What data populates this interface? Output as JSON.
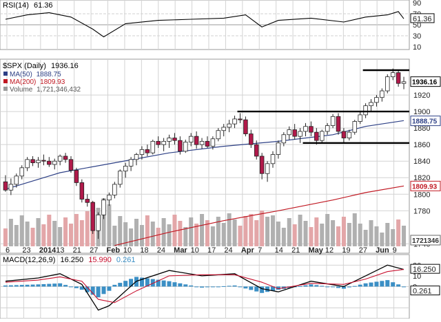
{
  "colors": {
    "grid": "#d2d2d2",
    "up_fill": "#ffffff",
    "down_fill": "#b0194a",
    "candle_edge": "#222222",
    "ma50": "#2c3f85",
    "ma200": "#c01822",
    "vol_up": "#b0b0b0",
    "vol_down": "#e3a6a8",
    "macd_line": "#000000",
    "signal_line": "#c8102e",
    "histogram": "#3b8fc5",
    "rsi_line": "#000000",
    "support_line": "#000000"
  },
  "rsi_panel": {
    "label": "RSI(14)",
    "value_label": "61.36",
    "ticks": [
      "90",
      "70",
      "61.36",
      "50",
      "30",
      "10"
    ]
  },
  "main_panel": {
    "label": "$SPX (Daily)",
    "value_label": "1936.16",
    "legend": [
      {
        "text": "MA(50)",
        "value": "1888.75"
      },
      {
        "text": "MA(200)",
        "value": "1809.93"
      },
      {
        "text": "Volume",
        "value": "1,721,346,432"
      }
    ],
    "price_ticks": [
      "1920",
      "1900",
      "1880",
      "1860",
      "1840",
      "1820",
      "1800",
      "1780",
      "1740"
    ],
    "tags": {
      "last_price": "1936.16",
      "ma50": "1888.75",
      "ma200": "1809.93",
      "volume": "1721346"
    }
  },
  "macd_panel": {
    "label": "MACD(12,26,9)",
    "macd_value": "16.250",
    "signal_value": "15.990",
    "hist_value": "0.261",
    "ticks": [
      "20",
      "16.250",
      "10",
      "0",
      "0.261"
    ]
  },
  "x_axis": {
    "labels": [
      "6",
      "23",
      "2014",
      "13",
      "21",
      "27",
      "Feb",
      "10",
      "18",
      "24",
      "Mar",
      "10",
      "17",
      "24",
      "Apr",
      "7",
      "14",
      "21",
      "May",
      "12",
      "19",
      "27",
      "Jun",
      "9"
    ],
    "bold": [
      "2014",
      "Feb",
      "Mar",
      "Apr",
      "May",
      "Jun"
    ]
  },
  "chart_data": {
    "type": "candlestick",
    "title": "$SPX (Daily)",
    "panels": [
      "RSI(14)",
      "Price",
      "MACD(12,26,9)"
    ],
    "ylim_price": [
      1737,
      1955
    ],
    "ylim_rsi": [
      10,
      90
    ],
    "ylim_macd": [
      -28,
      26
    ],
    "horizontal_lines": [
      {
        "price": 1900,
        "from_bar": 43,
        "to_bar": 73
      },
      {
        "price": 1862,
        "from_bar": 55,
        "to_bar": 73
      },
      {
        "price": 1950,
        "from_bar": 66,
        "to_bar": 73
      }
    ],
    "candles": [
      [
        1815,
        1823,
        1803,
        1805
      ],
      [
        1805,
        1819,
        1799,
        1812
      ],
      [
        1812,
        1825,
        1808,
        1822
      ],
      [
        1822,
        1835,
        1818,
        1832
      ],
      [
        1832,
        1845,
        1828,
        1842
      ],
      [
        1842,
        1846,
        1834,
        1838
      ],
      [
        1838,
        1845,
        1832,
        1841
      ],
      [
        1841,
        1848,
        1835,
        1840
      ],
      [
        1840,
        1845,
        1833,
        1836
      ],
      [
        1836,
        1843,
        1830,
        1840
      ],
      [
        1840,
        1848,
        1835,
        1846
      ],
      [
        1846,
        1850,
        1838,
        1842
      ],
      [
        1842,
        1846,
        1826,
        1829
      ],
      [
        1829,
        1832,
        1810,
        1814
      ],
      [
        1814,
        1818,
        1790,
        1794
      ],
      [
        1794,
        1800,
        1785,
        1790
      ],
      [
        1790,
        1792,
        1752,
        1756
      ],
      [
        1756,
        1778,
        1746,
        1775
      ],
      [
        1775,
        1795,
        1770,
        1793
      ],
      [
        1793,
        1802,
        1786,
        1799
      ],
      [
        1799,
        1815,
        1795,
        1812
      ],
      [
        1812,
        1830,
        1808,
        1828
      ],
      [
        1828,
        1838,
        1820,
        1834
      ],
      [
        1834,
        1845,
        1828,
        1842
      ],
      [
        1842,
        1850,
        1835,
        1848
      ],
      [
        1848,
        1858,
        1842,
        1854
      ],
      [
        1854,
        1860,
        1846,
        1850
      ],
      [
        1850,
        1866,
        1848,
        1864
      ],
      [
        1864,
        1870,
        1856,
        1860
      ],
      [
        1860,
        1868,
        1852,
        1864
      ],
      [
        1864,
        1872,
        1856,
        1868
      ],
      [
        1868,
        1874,
        1860,
        1865
      ],
      [
        1865,
        1870,
        1848,
        1852
      ],
      [
        1852,
        1866,
        1850,
        1863
      ],
      [
        1863,
        1874,
        1858,
        1870
      ],
      [
        1870,
        1876,
        1855,
        1860
      ],
      [
        1860,
        1868,
        1855,
        1864
      ],
      [
        1864,
        1870,
        1856,
        1858
      ],
      [
        1858,
        1870,
        1854,
        1867
      ],
      [
        1867,
        1880,
        1864,
        1877
      ],
      [
        1877,
        1885,
        1870,
        1881
      ],
      [
        1881,
        1890,
        1875,
        1885
      ],
      [
        1885,
        1895,
        1880,
        1891
      ],
      [
        1891,
        1898,
        1886,
        1890
      ],
      [
        1890,
        1894,
        1870,
        1873
      ],
      [
        1873,
        1878,
        1856,
        1860
      ],
      [
        1860,
        1865,
        1842,
        1846
      ],
      [
        1846,
        1850,
        1818,
        1825
      ],
      [
        1825,
        1840,
        1815,
        1837
      ],
      [
        1837,
        1852,
        1832,
        1848
      ],
      [
        1848,
        1865,
        1843,
        1862
      ],
      [
        1862,
        1875,
        1858,
        1872
      ],
      [
        1872,
        1882,
        1866,
        1878
      ],
      [
        1878,
        1885,
        1866,
        1870
      ],
      [
        1870,
        1880,
        1862,
        1876
      ],
      [
        1876,
        1886,
        1870,
        1882
      ],
      [
        1882,
        1888,
        1870,
        1875
      ],
      [
        1875,
        1880,
        1860,
        1865
      ],
      [
        1865,
        1878,
        1862,
        1876
      ],
      [
        1876,
        1886,
        1872,
        1883
      ],
      [
        1883,
        1897,
        1880,
        1894
      ],
      [
        1894,
        1898,
        1872,
        1876
      ],
      [
        1876,
        1880,
        1862,
        1868
      ],
      [
        1868,
        1878,
        1865,
        1875
      ],
      [
        1875,
        1890,
        1872,
        1888
      ],
      [
        1888,
        1900,
        1885,
        1896
      ],
      [
        1896,
        1910,
        1892,
        1907
      ],
      [
        1907,
        1915,
        1900,
        1911
      ],
      [
        1911,
        1920,
        1906,
        1917
      ],
      [
        1917,
        1928,
        1912,
        1925
      ],
      [
        1925,
        1945,
        1922,
        1942
      ],
      [
        1942,
        1952,
        1938,
        1947
      ],
      [
        1947,
        1950,
        1930,
        1934
      ],
      [
        1934,
        1942,
        1927,
        1936
      ]
    ],
    "series": [
      {
        "name": "MA(50)",
        "last": 1888.75,
        "values": [
          [
            0,
            1806
          ],
          [
            10,
            1826
          ],
          [
            20,
            1838
          ],
          [
            30,
            1850
          ],
          [
            40,
            1858
          ],
          [
            50,
            1864
          ],
          [
            60,
            1872
          ],
          [
            66,
            1882
          ],
          [
            73,
            1889
          ]
        ]
      },
      {
        "name": "MA(200)",
        "last": 1809.93,
        "values": [
          [
            20,
            1738
          ],
          [
            30,
            1754
          ],
          [
            40,
            1768
          ],
          [
            50,
            1780
          ],
          [
            60,
            1793
          ],
          [
            66,
            1802
          ],
          [
            73,
            1810
          ]
        ]
      },
      {
        "name": "Volume",
        "last": 1721346432,
        "note": "visible bar heights, scaled"
      },
      {
        "name": "RSI(14)",
        "last": 61.36,
        "values": [
          [
            0,
            60
          ],
          [
            4,
            68
          ],
          [
            8,
            72
          ],
          [
            12,
            64
          ],
          [
            16,
            42
          ],
          [
            18,
            28
          ],
          [
            22,
            52
          ],
          [
            28,
            58
          ],
          [
            34,
            60
          ],
          [
            40,
            62
          ],
          [
            44,
            68
          ],
          [
            47,
            46
          ],
          [
            50,
            58
          ],
          [
            56,
            62
          ],
          [
            62,
            55
          ],
          [
            66,
            64
          ],
          [
            70,
            68
          ],
          [
            72,
            74
          ],
          [
            73,
            61
          ]
        ]
      },
      {
        "name": "MACD",
        "last": 16.25,
        "values": [
          [
            0,
            5
          ],
          [
            6,
            8
          ],
          [
            10,
            12
          ],
          [
            14,
            2
          ],
          [
            17,
            -22
          ],
          [
            19,
            -18
          ],
          [
            24,
            5
          ],
          [
            30,
            15
          ],
          [
            36,
            10
          ],
          [
            42,
            12
          ],
          [
            47,
            -2
          ],
          [
            50,
            -5
          ],
          [
            56,
            5
          ],
          [
            62,
            0
          ],
          [
            66,
            10
          ],
          [
            70,
            20
          ],
          [
            73,
            16
          ]
        ]
      },
      {
        "name": "Signal",
        "last": 15.99,
        "values": [
          [
            0,
            4
          ],
          [
            6,
            6
          ],
          [
            10,
            9
          ],
          [
            14,
            5
          ],
          [
            17,
            -12
          ],
          [
            20,
            -15
          ],
          [
            24,
            -4
          ],
          [
            30,
            10
          ],
          [
            36,
            11
          ],
          [
            42,
            11
          ],
          [
            47,
            4
          ],
          [
            50,
            -2
          ],
          [
            56,
            3
          ],
          [
            62,
            2
          ],
          [
            66,
            7
          ],
          [
            70,
            14
          ],
          [
            73,
            16
          ]
        ]
      }
    ]
  }
}
